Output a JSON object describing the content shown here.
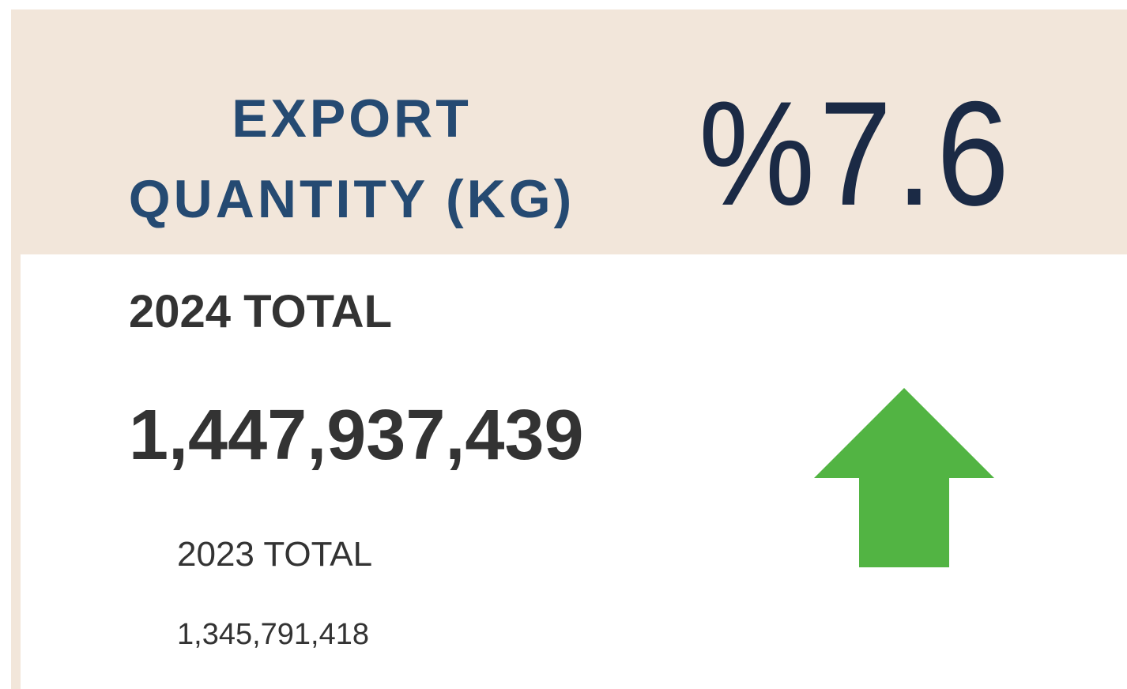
{
  "card": {
    "title_lines": [
      "EXPORT",
      "QUANTITY (KG)"
    ],
    "change": "%7.6",
    "current_label": "2024 TOTAL",
    "current_value": "1,447,937,439",
    "previous_label": "2023 TOTAL",
    "previous_value": "1,345,791,418"
  }
}
